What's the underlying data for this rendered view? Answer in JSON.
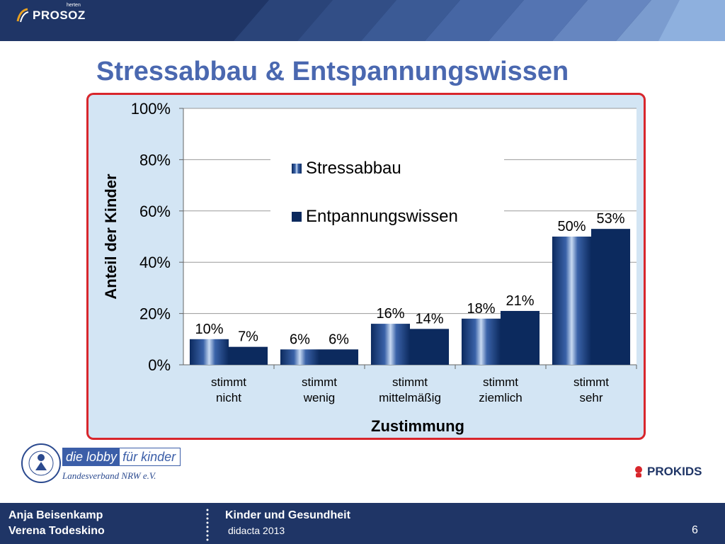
{
  "header": {
    "brand": "PROSOZ",
    "brand_small": "herten"
  },
  "slide": {
    "title": "Stressabbau & Entspannungswissen"
  },
  "chart_data": {
    "type": "bar",
    "categories": [
      [
        "stimmt",
        "nicht"
      ],
      [
        "stimmt",
        "wenig"
      ],
      [
        "stimmt",
        "mittelmäßig"
      ],
      [
        "stimmt",
        "ziemlich"
      ],
      [
        "stimmt",
        "sehr"
      ]
    ],
    "series": [
      {
        "name": "Stressabbau",
        "values": [
          10,
          6,
          16,
          18,
          50
        ],
        "labels": [
          "10%",
          "6%",
          "16%",
          "18%",
          "50%"
        ],
        "color": "#2b4f8e"
      },
      {
        "name": "Entpannungswissen",
        "values": [
          7,
          6,
          14,
          21,
          53
        ],
        "labels": [
          "7%",
          "6%",
          "14%",
          "21%",
          "53%"
        ],
        "color": "#0c2a5e"
      }
    ],
    "yticks": [
      "0%",
      "20%",
      "40%",
      "60%",
      "80%",
      "100%"
    ],
    "ylim": [
      0,
      100
    ],
    "ylabel": "Anteil der Kinder",
    "xlabel": "Zustimmung",
    "legend_position": "upper-middle",
    "grid": true
  },
  "logos": {
    "lobby_a": "die lobby",
    "lobby_b": "für kinder",
    "landesverband": "Landesverband NRW e.V.",
    "prokids": "PROKIDS"
  },
  "footer": {
    "author1": "Anja Beisenkamp",
    "author2": "Verena Todeskino",
    "topic": "Kinder und Gesundheit",
    "event": "didacta 2013",
    "page": "6"
  }
}
